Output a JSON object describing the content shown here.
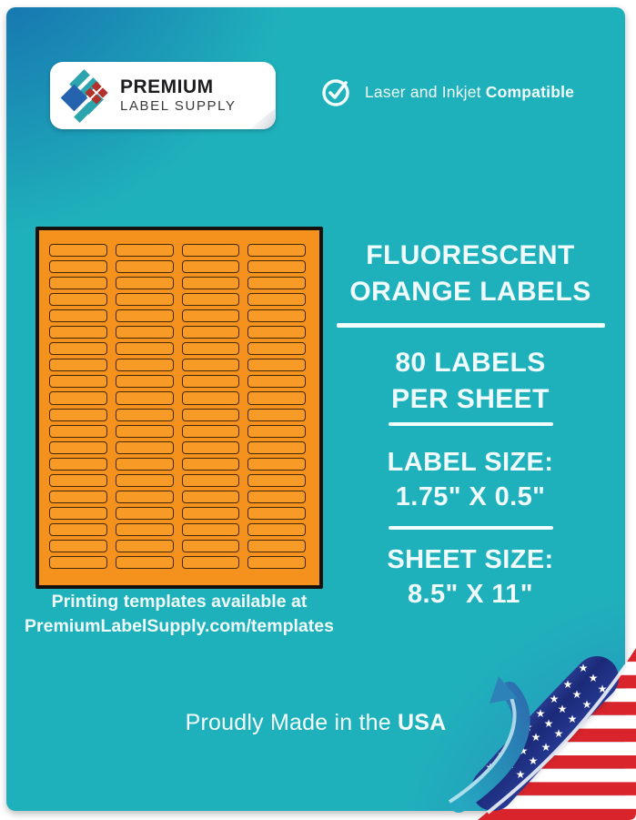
{
  "header": {
    "logo": {
      "line1": "PREMIUM",
      "line2": "LABEL SUPPLY"
    },
    "badge": {
      "regular": "Laser and Inkjet ",
      "bold": "Compatible"
    }
  },
  "sheet": {
    "columns": 4,
    "rows": 20,
    "total_labels": 80
  },
  "templates_note": {
    "line1": "Printing templates available at",
    "line2": "PremiumLabelSupply.com/templates"
  },
  "specs": {
    "title1": "FLUORESCENT",
    "title2": "ORANGE LABELS",
    "count1": "80 LABELS",
    "count2": "PER SHEET",
    "label_size_label": "LABEL SIZE:",
    "label_size_value": "1.75\" X 0.5\"",
    "sheet_size_label": "SHEET SIZE:",
    "sheet_size_value": "8.5\" X 11\""
  },
  "footer": {
    "regular": "Proudly Made in the ",
    "bold": "USA"
  },
  "colors": {
    "teal": "#1FB1BB",
    "deep_blue": "#1461AD",
    "corner_blue": "#2F7CC2",
    "sheet_orange": "#F5921E",
    "label_orange": "#F89B26",
    "flag_red": "#D9242C",
    "flag_navy": "#1B2A78",
    "logo_blue": "#2563AE",
    "logo_teal": "#2CA4AE",
    "logo_red": "#B1312B"
  }
}
